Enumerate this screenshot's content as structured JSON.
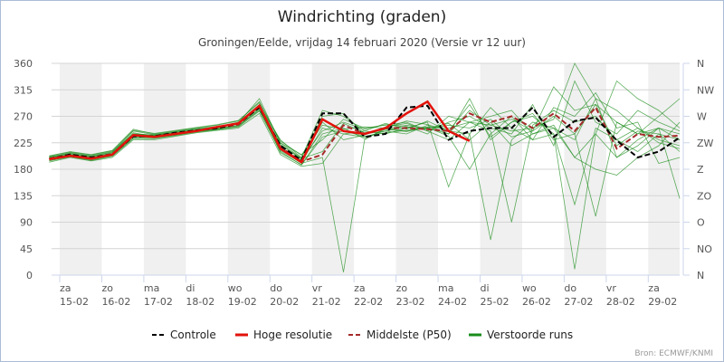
{
  "chart_data": {
    "type": "line",
    "title": "Windrichting (graden)",
    "subtitle": "Groningen/Eelde, vrijdag 14 februari 2020 (Versie vr 12 uur)",
    "credits": "Bron: ECMWF/KNMI",
    "ylim": [
      0,
      360
    ],
    "yticks": [
      0,
      45,
      90,
      135,
      180,
      225,
      270,
      315,
      360
    ],
    "yticks_right": [
      "N",
      "NO",
      "O",
      "ZO",
      "Z",
      "ZW",
      "W",
      "NW",
      "N"
    ],
    "xlim_day_of_february": [
      14.75,
      29.75
    ],
    "xticks": [
      {
        "day": 15,
        "weekday": "za",
        "date": "15-02"
      },
      {
        "day": 16,
        "weekday": "zo",
        "date": "16-02"
      },
      {
        "day": 17,
        "weekday": "ma",
        "date": "17-02"
      },
      {
        "day": 18,
        "weekday": "di",
        "date": "18-02"
      },
      {
        "day": 19,
        "weekday": "wo",
        "date": "19-02"
      },
      {
        "day": 20,
        "weekday": "do",
        "date": "20-02"
      },
      {
        "day": 21,
        "weekday": "vr",
        "date": "21-02"
      },
      {
        "day": 22,
        "weekday": "za",
        "date": "22-02"
      },
      {
        "day": 23,
        "weekday": "zo",
        "date": "23-02"
      },
      {
        "day": 24,
        "weekday": "ma",
        "date": "24-02"
      },
      {
        "day": 25,
        "weekday": "di",
        "date": "25-02"
      },
      {
        "day": 26,
        "weekday": "wo",
        "date": "26-02"
      },
      {
        "day": 27,
        "weekday": "do",
        "date": "27-02"
      },
      {
        "day": 28,
        "weekday": "vr",
        "date": "28-02"
      },
      {
        "day": 29,
        "weekday": "za",
        "date": "29-02"
      }
    ],
    "x_start": 14.75,
    "x_step": 0.5,
    "legend_position": "bottom",
    "series": [
      {
        "name": "Controle",
        "color": "#000000",
        "style": "dashed",
        "values": [
          197,
          205,
          200,
          205,
          236,
          236,
          242,
          246,
          250,
          258,
          285,
          220,
          195,
          275,
          275,
          235,
          240,
          285,
          288,
          230,
          245,
          250,
          250,
          285,
          235,
          262,
          268,
          229,
          200,
          210,
          234
        ]
      },
      {
        "name": "Hoge resolutie",
        "color": "#e3120b",
        "style": "solid",
        "values": [
          197,
          203,
          198,
          205,
          238,
          235,
          240,
          245,
          252,
          258,
          288,
          215,
          192,
          265,
          245,
          240,
          250,
          275,
          295,
          245,
          228
        ]
      },
      {
        "name": "Middelste (P50)",
        "color": "#a52a2a",
        "style": "dashed",
        "values": [
          198,
          205,
          200,
          206,
          237,
          236,
          241,
          246,
          250,
          256,
          286,
          218,
          193,
          205,
          255,
          240,
          250,
          250,
          248,
          245,
          275,
          260,
          270,
          250,
          275,
          245,
          285,
          215,
          240,
          235,
          237
        ]
      },
      {
        "name": "Verstoorde runs",
        "color": "#1a8c1a",
        "style": "thin",
        "runs": [
          [
            200,
            208,
            203,
            210,
            240,
            238,
            243,
            248,
            252,
            260,
            290,
            222,
            198,
            210,
            258,
            242,
            248,
            255,
            250,
            240,
            280,
            255,
            265,
            245,
            270,
            240,
            290,
            220,
            245,
            240,
            230
          ],
          [
            195,
            202,
            197,
            204,
            235,
            233,
            238,
            244,
            248,
            253,
            282,
            212,
            190,
            200,
            5,
            230,
            250,
            245,
            252,
            250,
            260,
            270,
            280,
            240,
            250,
            230,
            300,
            200,
            230,
            250,
            240
          ],
          [
            203,
            210,
            205,
            212,
            248,
            240,
            245,
            250,
            255,
            262,
            295,
            225,
            205,
            230,
            265,
            250,
            255,
            260,
            245,
            230,
            260,
            245,
            90,
            255,
            280,
            260,
            270,
            230,
            250,
            225,
            215
          ],
          [
            192,
            200,
            194,
            200,
            230,
            230,
            236,
            242,
            246,
            250,
            275,
            205,
            185,
            190,
            240,
            235,
            245,
            240,
            255,
            240,
            300,
            230,
            260,
            270,
            240,
            10,
            240,
            200,
            220,
            250,
            230
          ],
          [
            200,
            206,
            201,
            208,
            242,
            236,
            240,
            246,
            250,
            258,
            288,
            230,
            200,
            280,
            270,
            245,
            240,
            250,
            260,
            150,
            240,
            285,
            250,
            230,
            285,
            270,
            310,
            250,
            260,
            190,
            200
          ],
          [
            198,
            204,
            199,
            205,
            238,
            237,
            242,
            247,
            251,
            257,
            286,
            215,
            195,
            260,
            230,
            238,
            252,
            258,
            245,
            260,
            270,
            250,
            240,
            290,
            220,
            330,
            260,
            240,
            280,
            260,
            245
          ],
          [
            197,
            203,
            198,
            206,
            236,
            234,
            240,
            245,
            249,
            255,
            280,
            218,
            192,
            250,
            240,
            245,
            258,
            248,
            262,
            245,
            240,
            60,
            230,
            260,
            250,
            200,
            180,
            170,
            200,
            220,
            260
          ],
          [
            201,
            207,
            202,
            209,
            245,
            239,
            244,
            249,
            253,
            259,
            300,
            225,
            199,
            270,
            275,
            240,
            245,
            252,
            248,
            255,
            250,
            265,
            235,
            245,
            320,
            280,
            290,
            260,
            240,
            270,
            300
          ],
          [
            196,
            202,
            196,
            203,
            233,
            235,
            239,
            244,
            248,
            254,
            284,
            208,
            188,
            240,
            250,
            232,
            248,
            244,
            251,
            236,
            180,
            240,
            270,
            230,
            240,
            120,
            250,
            230,
            210,
            240,
            210
          ],
          [
            199,
            205,
            200,
            207,
            240,
            238,
            241,
            246,
            251,
            257,
            287,
            222,
            197,
            245,
            260,
            248,
            256,
            253,
            240,
            270,
            260,
            255,
            245,
            250,
            265,
            360,
            300,
            280,
            250,
            230,
            220
          ],
          [
            202,
            209,
            204,
            211,
            246,
            241,
            246,
            251,
            256,
            263,
            293,
            228,
            204,
            255,
            248,
            252,
            250,
            262,
            256,
            245,
            290,
            235,
            260,
            275,
            230,
            240,
            100,
            260,
            240,
            250,
            130
          ],
          [
            194,
            201,
            195,
            202,
            232,
            232,
            237,
            243,
            247,
            252,
            279,
            210,
            187,
            235,
            245,
            236,
            242,
            246,
            250,
            258,
            230,
            260,
            220,
            240,
            255,
            200,
            240,
            330,
            300,
            280,
            250
          ]
        ]
      }
    ]
  }
}
